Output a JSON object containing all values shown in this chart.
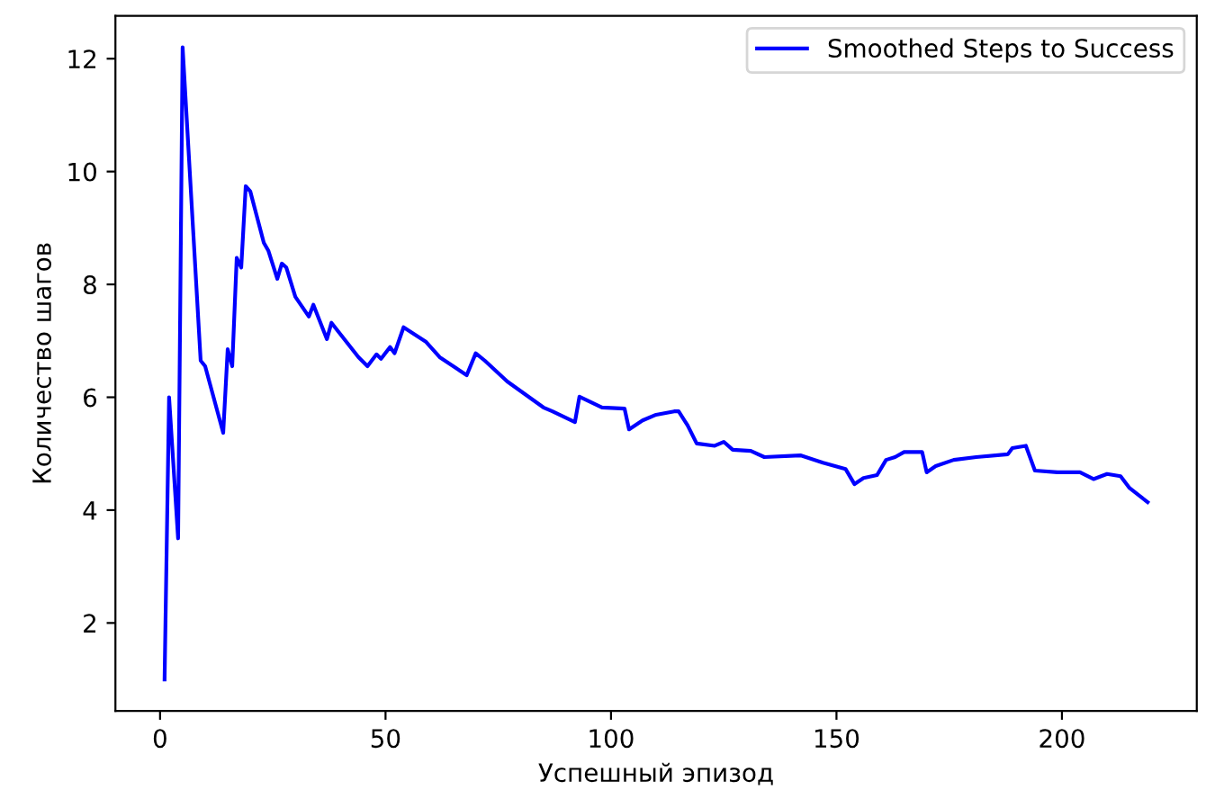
{
  "chart_data": {
    "type": "line",
    "xlabel": "Успешный эпизод",
    "ylabel": "Количество шагов",
    "legend": "top right",
    "grid": false,
    "xlim": [
      -9.9,
      229.9
    ],
    "xticks": [
      0,
      50,
      100,
      150,
      200
    ],
    "ylim": [
      0.44,
      12.76
    ],
    "yticks": [
      2,
      4,
      6,
      8,
      10,
      12
    ],
    "series": [
      {
        "name": "Smoothed Steps to Success",
        "color": "#0000ff",
        "x": [
          1,
          2,
          4,
          5,
          9,
          10,
          14,
          15,
          16,
          17,
          18,
          19,
          20,
          23,
          24,
          26,
          27,
          28,
          30,
          33,
          34,
          37,
          38,
          44,
          46,
          48,
          49,
          51,
          52,
          54,
          59,
          62,
          68,
          70,
          72,
          77,
          85,
          87,
          92,
          93,
          98,
          103,
          104,
          107,
          110,
          114,
          115,
          117,
          119,
          123,
          125,
          127,
          131,
          134,
          142,
          147,
          152,
          154,
          156,
          159,
          161,
          163,
          165,
          169,
          170,
          172,
          176,
          181,
          188,
          189,
          192,
          194,
          199,
          204,
          207,
          210,
          213,
          215,
          219
        ],
        "values": [
          1.0,
          6.0,
          3.5,
          12.2,
          6.65,
          6.55,
          5.37,
          6.85,
          6.55,
          8.47,
          8.3,
          9.74,
          9.65,
          8.74,
          8.6,
          8.1,
          8.37,
          8.3,
          7.78,
          7.43,
          7.64,
          7.03,
          7.32,
          6.71,
          6.55,
          6.76,
          6.68,
          6.89,
          6.78,
          7.24,
          6.98,
          6.71,
          6.39,
          6.78,
          6.65,
          6.28,
          5.82,
          5.75,
          5.56,
          6.01,
          5.82,
          5.8,
          5.43,
          5.59,
          5.69,
          5.75,
          5.75,
          5.5,
          5.18,
          5.14,
          5.21,
          5.07,
          5.05,
          4.94,
          4.97,
          4.84,
          4.73,
          4.46,
          4.57,
          4.62,
          4.89,
          4.94,
          5.03,
          5.03,
          4.67,
          4.78,
          4.89,
          4.94,
          4.99,
          5.1,
          5.14,
          4.7,
          4.67,
          4.67,
          4.55,
          4.64,
          4.6,
          4.39,
          4.14
        ]
      }
    ]
  }
}
